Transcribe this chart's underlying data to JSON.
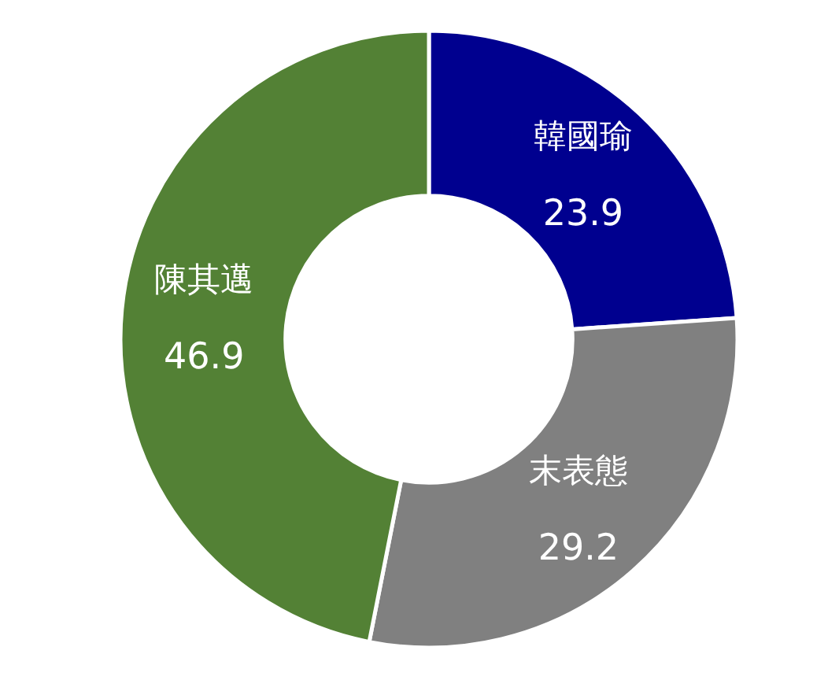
{
  "chart_data": {
    "type": "donut",
    "categories": [
      "韓國瑜",
      "末表態",
      "陳其邁"
    ],
    "values": [
      23.9,
      29.2,
      46.9
    ],
    "colors": [
      "#00008f",
      "#808080",
      "#538135"
    ],
    "data_labels": true
  }
}
